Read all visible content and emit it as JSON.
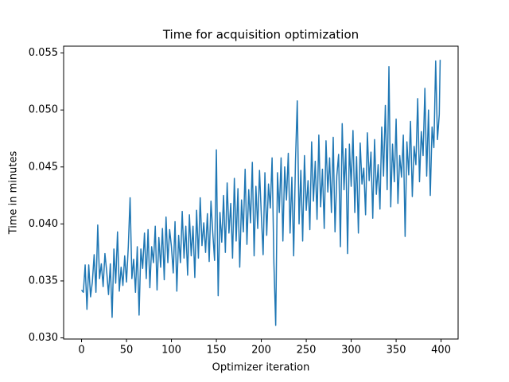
{
  "chart_data": {
    "type": "line",
    "title": "Time for acquisition optimization",
    "x_label": "Optimizer iteration",
    "y_label": "Time in minutes",
    "color": "#1f77b4",
    "x": [
      0,
      2,
      4,
      6,
      8,
      10,
      12,
      14,
      16,
      18,
      20,
      22,
      24,
      26,
      28,
      30,
      32,
      34,
      36,
      38,
      40,
      42,
      44,
      46,
      48,
      50,
      52,
      54,
      56,
      58,
      60,
      62,
      64,
      66,
      68,
      70,
      72,
      74,
      76,
      78,
      80,
      82,
      84,
      86,
      88,
      90,
      92,
      94,
      96,
      98,
      100,
      102,
      104,
      106,
      108,
      110,
      112,
      114,
      116,
      118,
      120,
      122,
      124,
      126,
      128,
      130,
      132,
      134,
      136,
      138,
      140,
      142,
      144,
      146,
      148,
      150,
      152,
      154,
      156,
      158,
      160,
      162,
      164,
      166,
      168,
      170,
      172,
      174,
      176,
      178,
      180,
      182,
      184,
      186,
      188,
      190,
      192,
      194,
      196,
      198,
      200,
      202,
      204,
      206,
      208,
      210,
      212,
      214,
      216,
      218,
      220,
      222,
      224,
      226,
      228,
      230,
      232,
      234,
      236,
      238,
      240,
      242,
      244,
      246,
      248,
      250,
      252,
      254,
      256,
      258,
      260,
      262,
      264,
      266,
      268,
      270,
      272,
      274,
      276,
      278,
      280,
      282,
      284,
      286,
      288,
      290,
      292,
      294,
      296,
      298,
      300,
      302,
      304,
      306,
      308,
      310,
      312,
      314,
      316,
      318,
      320,
      322,
      324,
      326,
      328,
      330,
      332,
      334,
      336,
      338,
      340,
      342,
      344,
      346,
      348,
      350,
      352,
      354,
      356,
      358,
      360,
      362,
      364,
      366,
      368,
      370,
      372,
      374,
      376,
      378,
      380,
      382,
      384,
      386,
      388,
      390,
      392,
      394,
      396,
      398,
      399
    ],
    "values": [
      0.0342,
      0.034,
      0.0364,
      0.0325,
      0.0364,
      0.0336,
      0.0349,
      0.0373,
      0.034,
      0.0399,
      0.0352,
      0.0365,
      0.0345,
      0.0374,
      0.0358,
      0.0338,
      0.0365,
      0.0318,
      0.0378,
      0.0348,
      0.0393,
      0.0341,
      0.0362,
      0.0346,
      0.0372,
      0.0349,
      0.038,
      0.0423,
      0.0352,
      0.0369,
      0.034,
      0.038,
      0.032,
      0.0378,
      0.0361,
      0.0392,
      0.0352,
      0.0395,
      0.0344,
      0.038,
      0.0366,
      0.0398,
      0.0342,
      0.0388,
      0.0362,
      0.0396,
      0.0351,
      0.0406,
      0.0366,
      0.0395,
      0.038,
      0.0357,
      0.0402,
      0.0341,
      0.039,
      0.0366,
      0.0411,
      0.037,
      0.0398,
      0.0355,
      0.0408,
      0.0372,
      0.0398,
      0.0353,
      0.0412,
      0.037,
      0.0423,
      0.0381,
      0.0401,
      0.0375,
      0.0409,
      0.0367,
      0.042,
      0.0392,
      0.0368,
      0.0465,
      0.0337,
      0.041,
      0.0384,
      0.0425,
      0.0375,
      0.0436,
      0.0392,
      0.0418,
      0.037,
      0.044,
      0.0385,
      0.0431,
      0.0362,
      0.0421,
      0.0393,
      0.0448,
      0.0382,
      0.043,
      0.0401,
      0.0454,
      0.0372,
      0.0433,
      0.0396,
      0.0447,
      0.0408,
      0.0373,
      0.0445,
      0.039,
      0.0435,
      0.0414,
      0.0458,
      0.0366,
      0.0311,
      0.0445,
      0.041,
      0.0458,
      0.0385,
      0.045,
      0.0421,
      0.0462,
      0.0392,
      0.0441,
      0.0372,
      0.0455,
      0.0508,
      0.04,
      0.0447,
      0.0385,
      0.046,
      0.0412,
      0.0438,
      0.0395,
      0.0472,
      0.042,
      0.0455,
      0.0404,
      0.0478,
      0.0415,
      0.0448,
      0.0396,
      0.0473,
      0.0428,
      0.0458,
      0.041,
      0.0476,
      0.0393,
      0.0442,
      0.0461,
      0.038,
      0.0488,
      0.043,
      0.0466,
      0.0374,
      0.047,
      0.0433,
      0.0482,
      0.041,
      0.0459,
      0.0392,
      0.0471,
      0.0435,
      0.0449,
      0.0408,
      0.048,
      0.0438,
      0.0463,
      0.0405,
      0.0474,
      0.0426,
      0.0452,
      0.0413,
      0.0485,
      0.0442,
      0.0504,
      0.043,
      0.0538,
      0.0415,
      0.047,
      0.0437,
      0.0492,
      0.0418,
      0.046,
      0.0441,
      0.0478,
      0.0389,
      0.0472,
      0.0443,
      0.049,
      0.0424,
      0.0468,
      0.0452,
      0.051,
      0.0437,
      0.0481,
      0.046,
      0.0519,
      0.0442,
      0.05,
      0.0425,
      0.0485,
      0.0467,
      0.0543,
      0.0474,
      0.0496,
      0.0544
    ],
    "xlim": [
      -19.95,
      418.95
    ],
    "xticks": [
      0,
      50,
      100,
      150,
      200,
      250,
      300,
      350,
      400
    ],
    "ylim": [
      0.0299,
      0.0556
    ],
    "yticks": [
      {
        "value": 0.03,
        "label": "0.030"
      },
      {
        "value": 0.035,
        "label": "0.035"
      },
      {
        "value": 0.04,
        "label": "0.040"
      },
      {
        "value": 0.045,
        "label": "0.045"
      },
      {
        "value": 0.05,
        "label": "0.050"
      },
      {
        "value": 0.055,
        "label": "0.055"
      }
    ]
  }
}
